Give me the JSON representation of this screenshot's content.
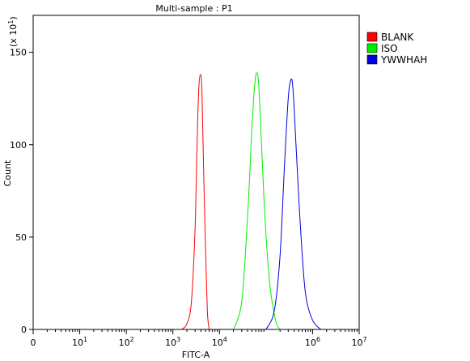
{
  "chart_data": {
    "type": "line",
    "title": "Multi-sample : P1",
    "xlabel": "FITC-A",
    "ylabel": "Count",
    "y_multiplier_label": "(x 10",
    "y_multiplier_exp": "1",
    "x_scale": "log",
    "xlim": [
      1,
      10000000
    ],
    "ylim": [
      0,
      170
    ],
    "y_ticks": [
      0,
      50,
      100,
      150
    ],
    "x_ticks": [
      {
        "value": 1,
        "base": "0",
        "exp": ""
      },
      {
        "value": 10,
        "base": "10",
        "exp": "1"
      },
      {
        "value": 100,
        "base": "10",
        "exp": "2"
      },
      {
        "value": 1000,
        "base": "10",
        "exp": "3"
      },
      {
        "value": 10000,
        "base": "10",
        "exp": "4"
      },
      {
        "value": 1000000,
        "base": "10",
        "exp": "6"
      },
      {
        "value": 10000000,
        "base": "10",
        "exp": "7"
      }
    ],
    "legend_position": "right",
    "series": [
      {
        "name": "BLANK",
        "color": "#ff0000",
        "x": [
          1500,
          2000,
          2500,
          3000,
          3300,
          3600,
          3900,
          4200,
          4500,
          5000,
          5500,
          6000
        ],
        "y": [
          0,
          3,
          15,
          55,
          100,
          130,
          138,
          130,
          95,
          45,
          10,
          0
        ]
      },
      {
        "name": "ISO",
        "color": "#00ee00",
        "x": [
          20000,
          30000,
          40000,
          50000,
          57000,
          63000,
          70000,
          80000,
          95000,
          120000,
          160000,
          200000
        ],
        "y": [
          0,
          15,
          60,
          110,
          132,
          139,
          132,
          100,
          60,
          25,
          5,
          0
        ]
      },
      {
        "name": "YWWHAH",
        "color": "#0000dd",
        "x": [
          100000,
          150000,
          200000,
          250000,
          300000,
          340000,
          380000,
          450000,
          550000,
          700000,
          1000000,
          1500000
        ],
        "y": [
          0,
          10,
          40,
          90,
          125,
          135,
          130,
          95,
          55,
          20,
          5,
          0
        ]
      }
    ]
  }
}
